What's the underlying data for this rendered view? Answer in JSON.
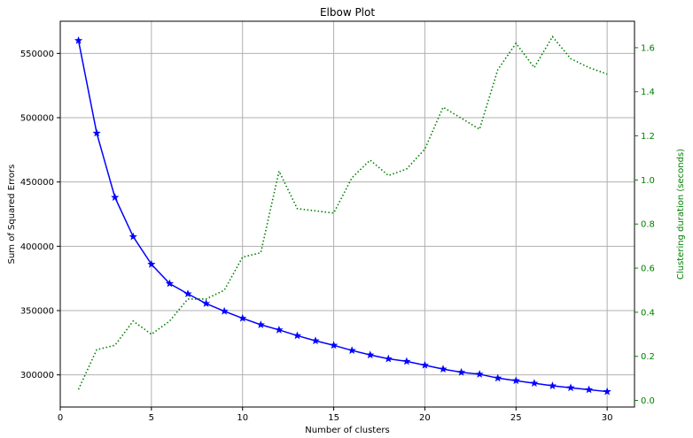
{
  "chart_data": {
    "type": "line",
    "title": "Elbow Plot",
    "xlabel": "Number of clusters",
    "ylabel": "Sum of Squared Errors",
    "y2label": "Clustering duration (seconds)",
    "xlim": [
      0,
      31.5
    ],
    "ylim": [
      275000,
      575000
    ],
    "y2lim": [
      -0.03,
      1.72
    ],
    "xticks": [
      0,
      5,
      10,
      15,
      20,
      25,
      30
    ],
    "yticks": [
      300000,
      350000,
      400000,
      450000,
      500000,
      550000
    ],
    "y2ticks": [
      0.0,
      0.2,
      0.4,
      0.6,
      0.8,
      1.0,
      1.2,
      1.4,
      1.6
    ],
    "grid": true,
    "x": [
      1,
      2,
      3,
      4,
      5,
      6,
      7,
      8,
      9,
      10,
      11,
      12,
      13,
      14,
      15,
      16,
      17,
      18,
      19,
      20,
      21,
      22,
      23,
      24,
      25,
      26,
      27,
      28,
      29,
      30
    ],
    "series": [
      {
        "name": "Sum of Squared Errors",
        "axis": "left",
        "color": "#0000ff",
        "style": "solid",
        "marker": "star",
        "values": [
          560000,
          488000,
          438000,
          407500,
          386000,
          371000,
          363000,
          355500,
          349500,
          344000,
          339000,
          335000,
          330500,
          326500,
          323000,
          319000,
          315500,
          312500,
          310500,
          307500,
          304500,
          302000,
          300500,
          297500,
          295500,
          293500,
          291500,
          290000,
          288500,
          287000
        ]
      },
      {
        "name": "Clustering duration (seconds)",
        "axis": "right",
        "color": "#008000",
        "style": "dotted",
        "marker": "none",
        "values": [
          0.05,
          0.23,
          0.25,
          0.36,
          0.3,
          0.36,
          0.46,
          0.46,
          0.5,
          0.65,
          0.67,
          1.04,
          0.87,
          0.86,
          0.85,
          1.01,
          1.09,
          1.02,
          1.05,
          1.14,
          1.33,
          1.28,
          1.23,
          1.5,
          1.62,
          1.51,
          1.65,
          1.55,
          1.51,
          1.48
        ]
      }
    ]
  }
}
